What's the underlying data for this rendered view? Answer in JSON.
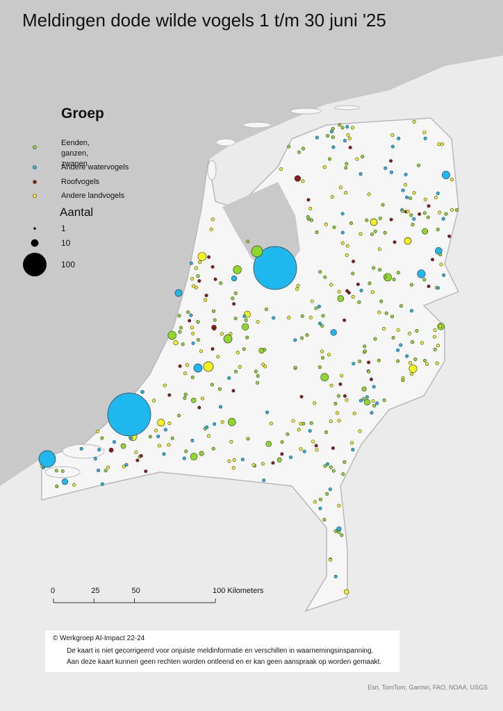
{
  "title": "Meldingen dode wilde vogels 1 t/m 30 juni '25",
  "legend": {
    "group_title": "Groep",
    "groups": [
      {
        "label": "Eenden, ganzen, zwanen",
        "color": "#8fd82a"
      },
      {
        "label": "Andere watervogels",
        "color": "#1fb8ee"
      },
      {
        "label": "Roofvogels",
        "color": "#8b1a1a"
      },
      {
        "label": "Andere landvogels",
        "color": "#f2f21e"
      }
    ],
    "size_title": "Aantal",
    "sizes": [
      1,
      10,
      100
    ]
  },
  "scale_bar": {
    "ticks": [
      0,
      25,
      50,
      {
        "value": 100,
        "label": "100 Kilometers"
      }
    ]
  },
  "notes": {
    "credit": "© Werkgroep AI-Impact 22-24",
    "lines": [
      "De kaart is niet gecorrigeerd voor onjuiste meldinformatie en verschillen in waarnemingsinspanning.",
      "Aan deze kaart kunnen geen rechten worden ontleend en er kan geen aanspraak op worden gemaakt."
    ]
  },
  "attribution": "Esri, TomTom, Garmin, FAO, NOAA, USGS"
}
